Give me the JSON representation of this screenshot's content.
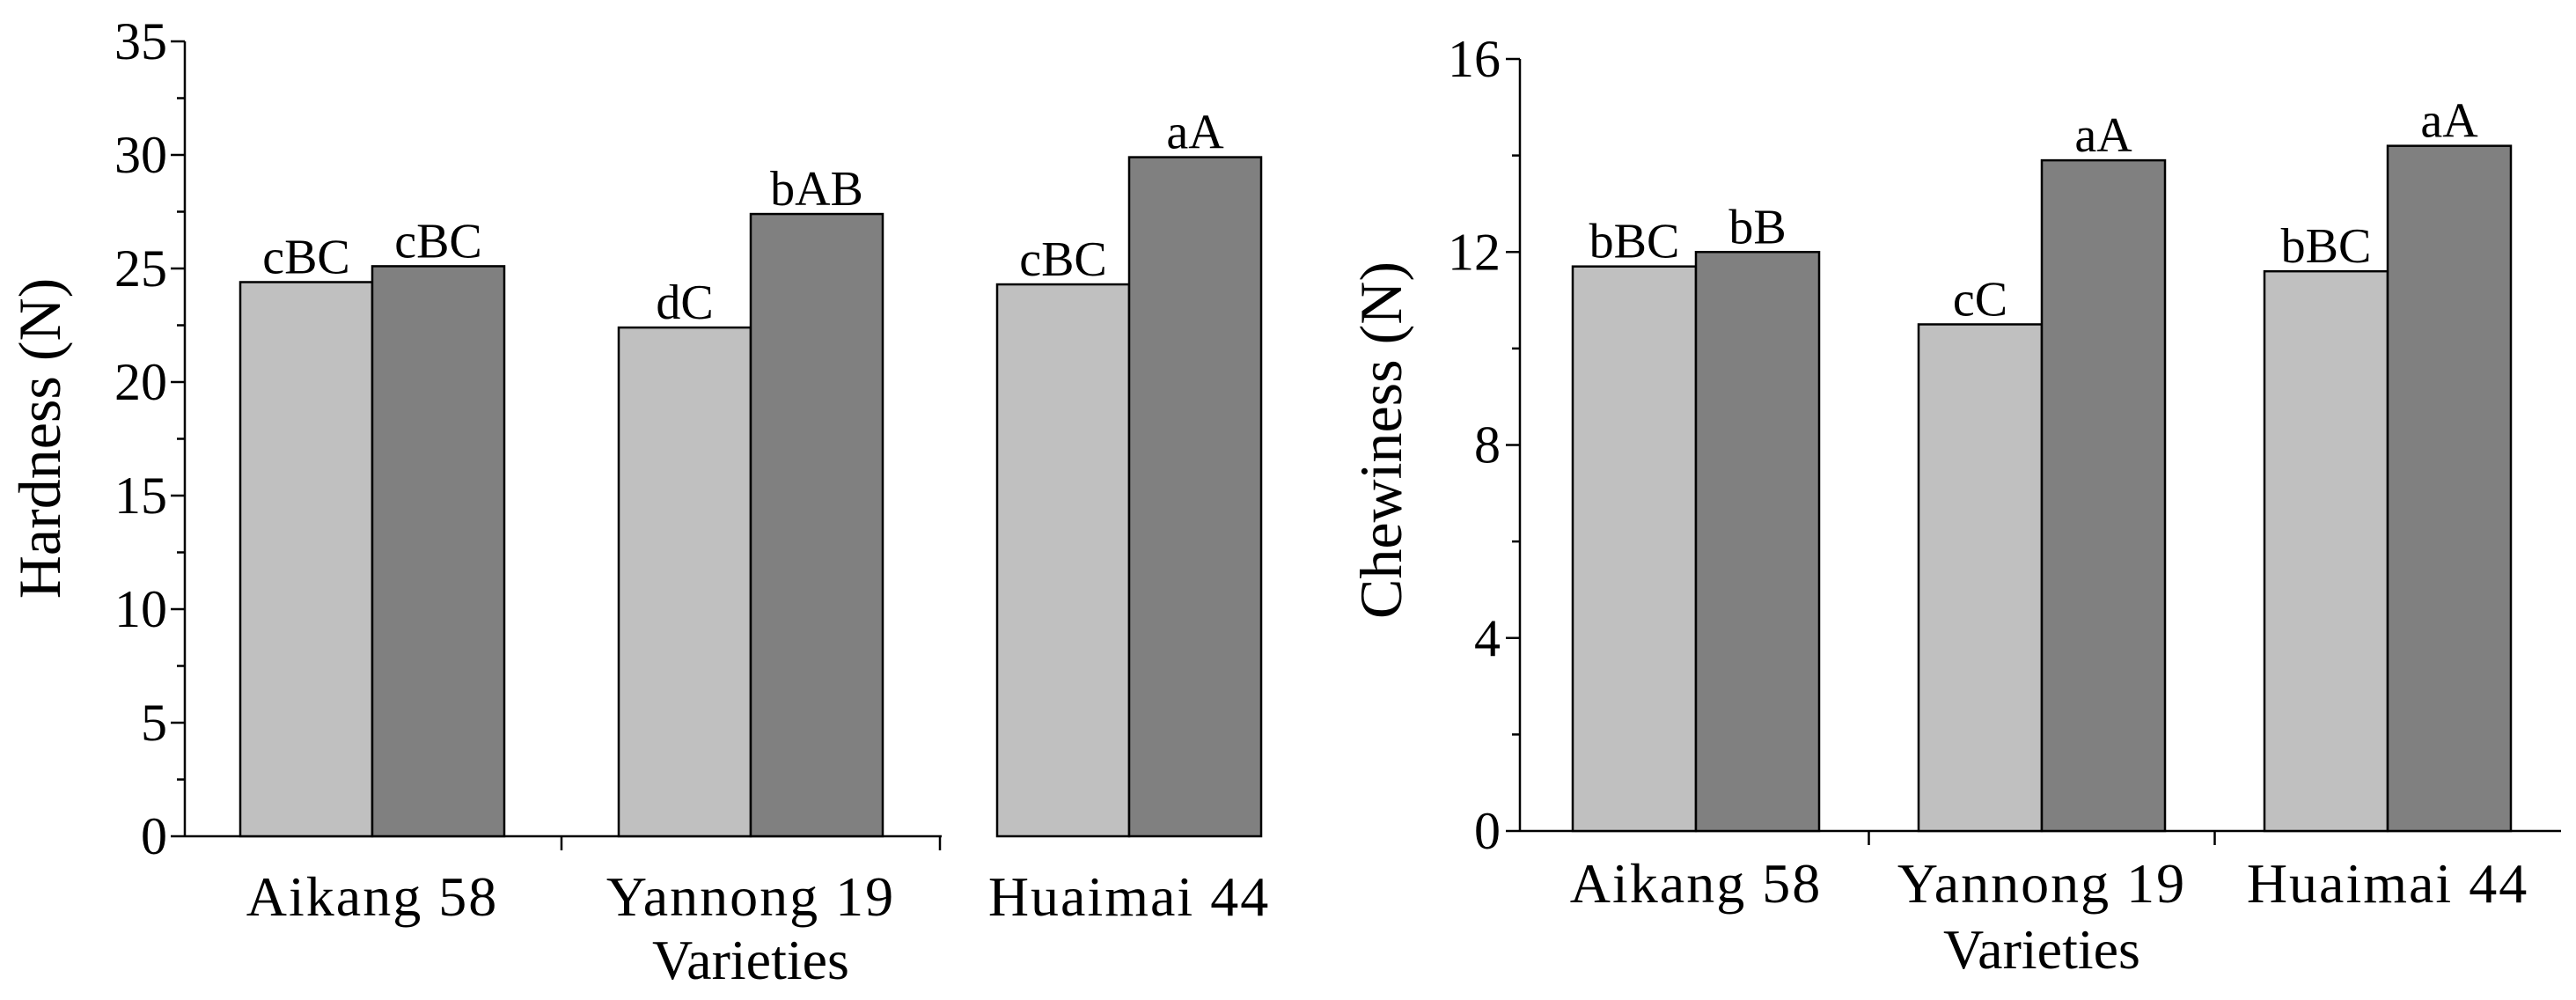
{
  "colors": {
    "series1": "#c0c0c0",
    "series2": "#808080",
    "stroke": "#000000"
  },
  "chart_data": [
    {
      "type": "bar",
      "title": "",
      "xlabel": "Varieties",
      "ylabel": "Hardness (N)",
      "categories": [
        "Aikang 58",
        "Yannong 19",
        "Huaimai 44"
      ],
      "ylim": [
        0,
        35
      ],
      "yticks": [
        0,
        5,
        10,
        15,
        20,
        25,
        30,
        35
      ],
      "tick_labels": [
        "0",
        "5",
        "10",
        "15",
        "20",
        "25",
        "30",
        "35"
      ],
      "series": [
        {
          "name": "",
          "values": [
            24.4,
            22.4,
            24.3
          ],
          "labels": [
            "cBC",
            "dC",
            "cBC"
          ]
        },
        {
          "name": "",
          "values": [
            25.1,
            27.4,
            29.9
          ],
          "labels": [
            "cBC",
            "bAB",
            "aA"
          ]
        }
      ]
    },
    {
      "type": "bar",
      "title": "",
      "xlabel": "Varieties",
      "ylabel": "Chewiness (N)",
      "categories": [
        "Aikang 58",
        "Yannong 19",
        "Huaimai 44"
      ],
      "ylim": [
        0,
        16
      ],
      "yticks": [
        0,
        4,
        8,
        12,
        16
      ],
      "tick_labels": [
        "0",
        "4",
        "8",
        "12",
        "16"
      ],
      "series": [
        {
          "name": "",
          "values": [
            11.7,
            10.5,
            11.6
          ],
          "labels": [
            "bBC",
            "cC",
            "bBC"
          ]
        },
        {
          "name": "",
          "values": [
            12.0,
            13.9,
            14.2
          ],
          "labels": [
            "bB",
            "aA",
            "aA"
          ]
        }
      ]
    }
  ]
}
